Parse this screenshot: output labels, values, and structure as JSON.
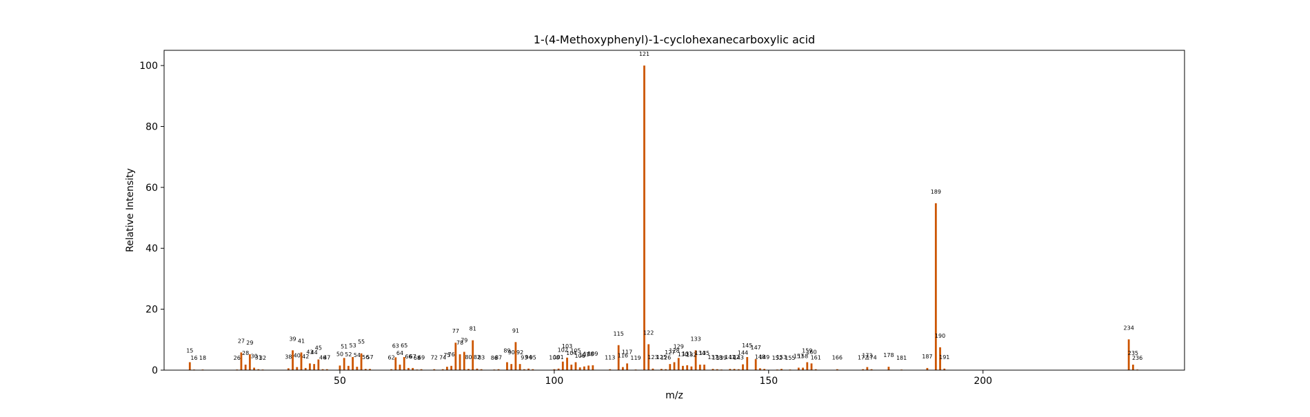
{
  "chart_data": {
    "type": "bar",
    "title": "1-(4-Methoxyphenyl)-1-cyclohexanecarboxylic acid",
    "xlabel": "m/z",
    "ylabel": "Relative Intensity",
    "xlim": [
      9,
      247
    ],
    "ylim": [
      0,
      105
    ],
    "xticks": [
      50,
      100,
      150,
      200
    ],
    "yticks": [
      0,
      20,
      40,
      60,
      80,
      100
    ],
    "grid": false,
    "bar_color": "#cc5500",
    "peaks": [
      {
        "mz": 15,
        "intensity": 2.6
      },
      {
        "mz": 16,
        "intensity": 0.2
      },
      {
        "mz": 18,
        "intensity": 0.2
      },
      {
        "mz": 26,
        "intensity": 0.2
      },
      {
        "mz": 27,
        "intensity": 5.8
      },
      {
        "mz": 28,
        "intensity": 1.8
      },
      {
        "mz": 29,
        "intensity": 5.2
      },
      {
        "mz": 30,
        "intensity": 0.8
      },
      {
        "mz": 31,
        "intensity": 0.3
      },
      {
        "mz": 32,
        "intensity": 0.2
      },
      {
        "mz": 38,
        "intensity": 0.6
      },
      {
        "mz": 39,
        "intensity": 6.5
      },
      {
        "mz": 40,
        "intensity": 1.0
      },
      {
        "mz": 41,
        "intensity": 5.8
      },
      {
        "mz": 42,
        "intensity": 0.7
      },
      {
        "mz": 43,
        "intensity": 2.2
      },
      {
        "mz": 44,
        "intensity": 2.0
      },
      {
        "mz": 45,
        "intensity": 3.5
      },
      {
        "mz": 46,
        "intensity": 0.3
      },
      {
        "mz": 47,
        "intensity": 0.3
      },
      {
        "mz": 50,
        "intensity": 1.5
      },
      {
        "mz": 51,
        "intensity": 4.0
      },
      {
        "mz": 52,
        "intensity": 1.4
      },
      {
        "mz": 53,
        "intensity": 4.3
      },
      {
        "mz": 54,
        "intensity": 1.1
      },
      {
        "mz": 55,
        "intensity": 5.5
      },
      {
        "mz": 56,
        "intensity": 0.4
      },
      {
        "mz": 57,
        "intensity": 0.4
      },
      {
        "mz": 62,
        "intensity": 0.3
      },
      {
        "mz": 63,
        "intensity": 4.2
      },
      {
        "mz": 64,
        "intensity": 1.8
      },
      {
        "mz": 65,
        "intensity": 4.3
      },
      {
        "mz": 66,
        "intensity": 0.7
      },
      {
        "mz": 67,
        "intensity": 0.7
      },
      {
        "mz": 68,
        "intensity": 0.2
      },
      {
        "mz": 69,
        "intensity": 0.3
      },
      {
        "mz": 72,
        "intensity": 0.3
      },
      {
        "mz": 74,
        "intensity": 0.3
      },
      {
        "mz": 75,
        "intensity": 1.1
      },
      {
        "mz": 76,
        "intensity": 1.4
      },
      {
        "mz": 77,
        "intensity": 9.0
      },
      {
        "mz": 78,
        "intensity": 5.2
      },
      {
        "mz": 79,
        "intensity": 6.0
      },
      {
        "mz": 80,
        "intensity": 0.4
      },
      {
        "mz": 81,
        "intensity": 9.8
      },
      {
        "mz": 82,
        "intensity": 0.5
      },
      {
        "mz": 83,
        "intensity": 0.3
      },
      {
        "mz": 86,
        "intensity": 0.2
      },
      {
        "mz": 87,
        "intensity": 0.3
      },
      {
        "mz": 89,
        "intensity": 2.6
      },
      {
        "mz": 90,
        "intensity": 2.0
      },
      {
        "mz": 91,
        "intensity": 9.2
      },
      {
        "mz": 92,
        "intensity": 2.0
      },
      {
        "mz": 93,
        "intensity": 0.3
      },
      {
        "mz": 94,
        "intensity": 0.5
      },
      {
        "mz": 95,
        "intensity": 0.3
      },
      {
        "mz": 100,
        "intensity": 0.3
      },
      {
        "mz": 101,
        "intensity": 0.5
      },
      {
        "mz": 102,
        "intensity": 2.8
      },
      {
        "mz": 103,
        "intensity": 4.1
      },
      {
        "mz": 104,
        "intensity": 1.8
      },
      {
        "mz": 105,
        "intensity": 2.6
      },
      {
        "mz": 106,
        "intensity": 0.9
      },
      {
        "mz": 107,
        "intensity": 1.2
      },
      {
        "mz": 108,
        "intensity": 1.5
      },
      {
        "mz": 109,
        "intensity": 1.6
      },
      {
        "mz": 113,
        "intensity": 0.3
      },
      {
        "mz": 115,
        "intensity": 8.2
      },
      {
        "mz": 116,
        "intensity": 1.0
      },
      {
        "mz": 117,
        "intensity": 2.2
      },
      {
        "mz": 119,
        "intensity": 0.2
      },
      {
        "mz": 121,
        "intensity": 100
      },
      {
        "mz": 122,
        "intensity": 8.5
      },
      {
        "mz": 123,
        "intensity": 0.5
      },
      {
        "mz": 125,
        "intensity": 0.4
      },
      {
        "mz": 126,
        "intensity": 0.3
      },
      {
        "mz": 127,
        "intensity": 2.0
      },
      {
        "mz": 128,
        "intensity": 2.6
      },
      {
        "mz": 129,
        "intensity": 4.0
      },
      {
        "mz": 130,
        "intensity": 1.4
      },
      {
        "mz": 131,
        "intensity": 1.6
      },
      {
        "mz": 132,
        "intensity": 1.2
      },
      {
        "mz": 133,
        "intensity": 6.5
      },
      {
        "mz": 134,
        "intensity": 1.8
      },
      {
        "mz": 135,
        "intensity": 1.8
      },
      {
        "mz": 137,
        "intensity": 0.4
      },
      {
        "mz": 138,
        "intensity": 0.3
      },
      {
        "mz": 139,
        "intensity": 0.2
      },
      {
        "mz": 141,
        "intensity": 0.4
      },
      {
        "mz": 142,
        "intensity": 0.4
      },
      {
        "mz": 143,
        "intensity": 0.3
      },
      {
        "mz": 144,
        "intensity": 1.9
      },
      {
        "mz": 145,
        "intensity": 4.3
      },
      {
        "mz": 147,
        "intensity": 3.6
      },
      {
        "mz": 148,
        "intensity": 0.6
      },
      {
        "mz": 149,
        "intensity": 0.4
      },
      {
        "mz": 152,
        "intensity": 0.2
      },
      {
        "mz": 153,
        "intensity": 0.4
      },
      {
        "mz": 155,
        "intensity": 0.2
      },
      {
        "mz": 157,
        "intensity": 0.8
      },
      {
        "mz": 158,
        "intensity": 0.8
      },
      {
        "mz": 159,
        "intensity": 2.6
      },
      {
        "mz": 160,
        "intensity": 2.2
      },
      {
        "mz": 161,
        "intensity": 0.3
      },
      {
        "mz": 166,
        "intensity": 0.3
      },
      {
        "mz": 172,
        "intensity": 0.3
      },
      {
        "mz": 173,
        "intensity": 1.0
      },
      {
        "mz": 174,
        "intensity": 0.3
      },
      {
        "mz": 178,
        "intensity": 1.1
      },
      {
        "mz": 181,
        "intensity": 0.2
      },
      {
        "mz": 187,
        "intensity": 0.7
      },
      {
        "mz": 189,
        "intensity": 54.8
      },
      {
        "mz": 190,
        "intensity": 7.5
      },
      {
        "mz": 191,
        "intensity": 0.5
      },
      {
        "mz": 234,
        "intensity": 10.1
      },
      {
        "mz": 235,
        "intensity": 1.8
      },
      {
        "mz": 236,
        "intensity": 0.2
      }
    ]
  }
}
